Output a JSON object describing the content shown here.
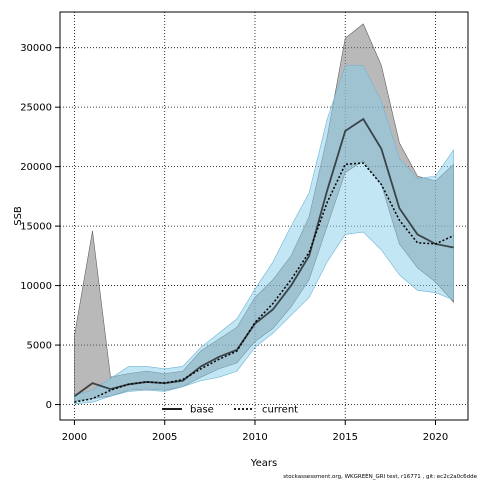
{
  "chart_data": {
    "type": "line",
    "xlabel": "Years",
    "ylabel": "SSB",
    "footer": "stockassessment.org, WKGREEN_GRI test, r16771 , git: ec2c2a0c6dde",
    "xlim": [
      1999.2,
      2021.8
    ],
    "ylim": [
      -1300,
      33000
    ],
    "x_ticks": [
      2000,
      2005,
      2010,
      2015,
      2020
    ],
    "y_ticks": [
      0,
      5000,
      10000,
      15000,
      20000,
      25000,
      30000
    ],
    "grid": true,
    "legend_position": "bottom-center",
    "x": [
      2000,
      2001,
      2002,
      2003,
      2004,
      2005,
      2006,
      2007,
      2008,
      2009,
      2010,
      2011,
      2012,
      2013,
      2014,
      2015,
      2016,
      2017,
      2018,
      2019,
      2020,
      2021
    ],
    "series": [
      {
        "name": "base",
        "line_style": "solid",
        "line_color": "#000000",
        "band_color": "#808080",
        "values": [
          700,
          1800,
          1300,
          1700,
          1900,
          1800,
          2000,
          3200,
          4000,
          4600,
          6800,
          8000,
          10000,
          12500,
          18000,
          23000,
          24000,
          21500,
          16500,
          14300,
          13500,
          13200
        ],
        "lower": [
          300,
          500,
          700,
          1200,
          1300,
          1200,
          1500,
          2300,
          3000,
          3500,
          5300,
          6400,
          8200,
          10500,
          15000,
          19500,
          20500,
          18500,
          13500,
          11500,
          10300,
          8600
        ],
        "upper": [
          5800,
          14600,
          2300,
          2600,
          2800,
          2600,
          2800,
          4500,
          5500,
          6500,
          9000,
          10500,
          12500,
          15800,
          22500,
          30800,
          32000,
          28500,
          22000,
          19200,
          18800,
          20200
        ]
      },
      {
        "name": "current",
        "line_style": "dotted",
        "line_color": "#000000",
        "band_color": "#87CEEB",
        "values": [
          200,
          500,
          1200,
          1700,
          1900,
          1800,
          2100,
          3000,
          3800,
          4500,
          6900,
          8500,
          10500,
          12800,
          17000,
          20200,
          20300,
          18500,
          15500,
          13600,
          13500,
          14200
        ],
        "lower": [
          50,
          200,
          700,
          1100,
          1200,
          1100,
          1500,
          2000,
          2300,
          2800,
          4800,
          6000,
          7500,
          9000,
          12000,
          14300,
          14500,
          13000,
          10900,
          9600,
          9400,
          8800
        ],
        "upper": [
          800,
          1200,
          2200,
          3200,
          3200,
          3000,
          3200,
          4800,
          6000,
          7200,
          9700,
          12000,
          15000,
          17800,
          24000,
          28500,
          28500,
          25500,
          20700,
          19000,
          19200,
          21400
        ]
      }
    ]
  }
}
